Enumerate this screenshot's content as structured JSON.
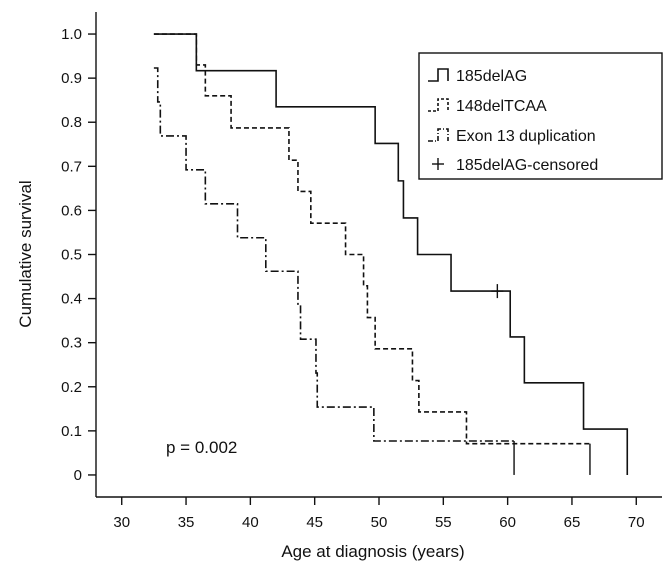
{
  "chart_data": {
    "type": "line",
    "step": true,
    "xlabel": "Age at diagnosis (years)",
    "ylabel": "Cumulative survival",
    "xlim": [
      28,
      72
    ],
    "ylim": [
      -0.05,
      1.05
    ],
    "xticks": [
      "30",
      "35",
      "40",
      "45",
      "50",
      "55",
      "60",
      "65",
      "70"
    ],
    "yticks": [
      "0",
      "0.1",
      "0.2",
      "0.3",
      "0.4",
      "0.5",
      "0.6",
      "0.7",
      "0.8",
      "0.9",
      "1.0"
    ],
    "grid": false,
    "legend_position": "top-right",
    "annotation": "p = 0.002",
    "series": [
      {
        "name": "185delAG",
        "style": "solid",
        "x": [
          32.5,
          35.8,
          42,
          49.7,
          51.5,
          51.9,
          53,
          55.6,
          59.6,
          60.2,
          61.3,
          65.9,
          69.3
        ],
        "y": [
          1.0,
          0.917,
          0.835,
          0.752,
          0.667,
          0.583,
          0.5,
          0.417,
          0.417,
          0.313,
          0.209,
          0.104,
          0.0
        ],
        "end_tick": false
      },
      {
        "name": "148delTCAA",
        "style": "dashed",
        "x": [
          32.5,
          35.8,
          36.5,
          38.5,
          43,
          43.7,
          44.7,
          47.4,
          48.8,
          49.1,
          49.7,
          52.6,
          53.1,
          56.8,
          66.4
        ],
        "y": [
          1.0,
          0.93,
          0.86,
          0.787,
          0.714,
          0.643,
          0.571,
          0.5,
          0.429,
          0.357,
          0.286,
          0.214,
          0.143,
          0.071,
          0.071
        ],
        "end_tick": true
      },
      {
        "name": "Exon 13 duplication",
        "style": "dashdot",
        "x": [
          32.5,
          32.8,
          33,
          35,
          36.5,
          39,
          41.2,
          43.7,
          43.9,
          45.1,
          45.2,
          49.6,
          60.5
        ],
        "y": [
          0.923,
          0.846,
          0.769,
          0.692,
          0.615,
          0.538,
          0.462,
          0.385,
          0.308,
          0.231,
          0.154,
          0.077,
          0.077
        ],
        "end_tick": true
      }
    ],
    "censored_series": {
      "name": "185delAG-censored",
      "marker": "+",
      "x": [
        59.2
      ],
      "y": [
        0.417
      ]
    }
  }
}
